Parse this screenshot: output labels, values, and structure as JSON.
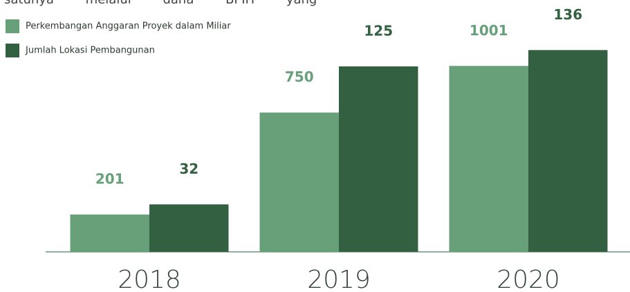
{
  "top_text": "satunya melalui dana BPIH yang",
  "chart_data": {
    "type": "bar",
    "categories": [
      "2018",
      "2019",
      "2020"
    ],
    "series": [
      {
        "name": "Perkembangan Anggaran Proyek dalam Miliar",
        "color": "#68a07a",
        "values": [
          201,
          750,
          1001
        ]
      },
      {
        "name": "Jumlah Lokasi Pembangunan",
        "color": "#336040",
        "values": [
          32,
          125,
          136
        ],
        "axis": "y2"
      }
    ],
    "ylim": [
      0,
      1326
    ],
    "y2lim": [
      0,
      166
    ]
  }
}
